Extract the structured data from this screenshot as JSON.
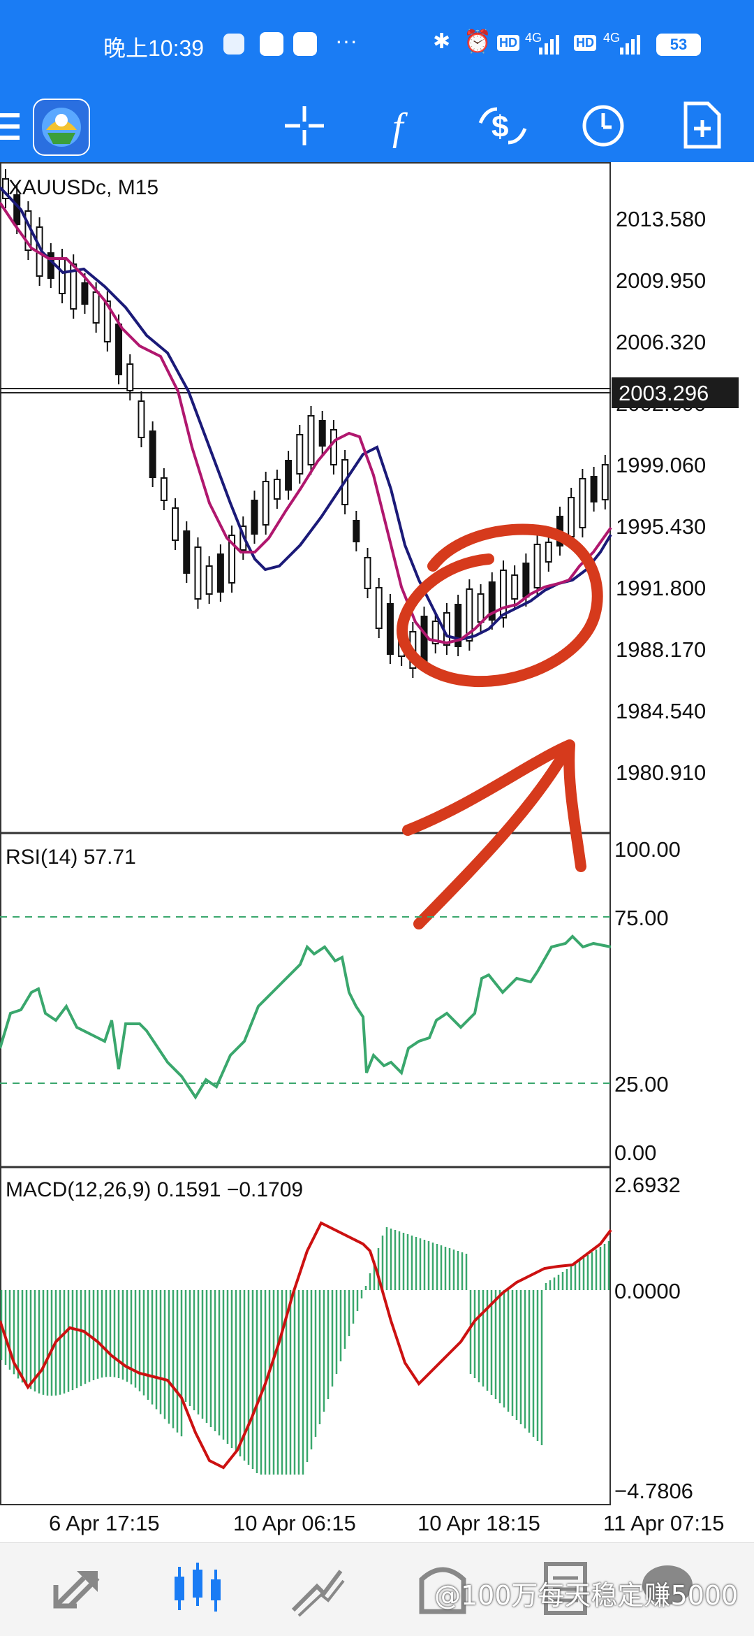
{
  "status_bar": {
    "time": "晚上10:39",
    "more": "···",
    "badge_hd": "HD",
    "badge_4g": "4G",
    "battery": "53"
  },
  "toolbar": {
    "buttons": [
      "menu-icon",
      "app-logo-icon",
      "crosshair-icon",
      "function-icon",
      "trade-icon",
      "clock-icon",
      "new-document-icon"
    ]
  },
  "chart": {
    "symbol": "XAUUSDc, M15",
    "price_ticks": [
      "2013.580",
      "2009.950",
      "2006.320",
      "2002.690",
      "1999.060",
      "1995.430",
      "1991.800",
      "1988.170",
      "1984.540",
      "1980.910"
    ],
    "current_price": "2003.296",
    "time_labels": [
      "6 Apr 17:15",
      "10 Apr 06:15",
      "10 Apr 18:15",
      "11 Apr 07:15"
    ],
    "colors": {
      "up": "#111111",
      "ma_fast": "#b0176e",
      "ma_slow": "#1b1a78",
      "rsi": "#3aa76d",
      "macd_hist": "#3aa76d",
      "macd_signal": "#cc1111",
      "annotation": "#d63a1c"
    }
  },
  "rsi": {
    "label": "RSI(14) 57.71",
    "levels": [
      "100.00",
      "75.00",
      "25.00",
      "0.00"
    ]
  },
  "macd": {
    "label": "MACD(12,26,9) 0.1591 −0.1709",
    "levels": [
      "2.6932",
      "0.0000",
      "−4.7806"
    ]
  },
  "bottom_nav": {
    "items": [
      "quotes-icon",
      "chart-icon",
      "trade-icon",
      "history-icon",
      "messages-icon"
    ],
    "watermark": "@100万每天稳定赚5000"
  }
}
